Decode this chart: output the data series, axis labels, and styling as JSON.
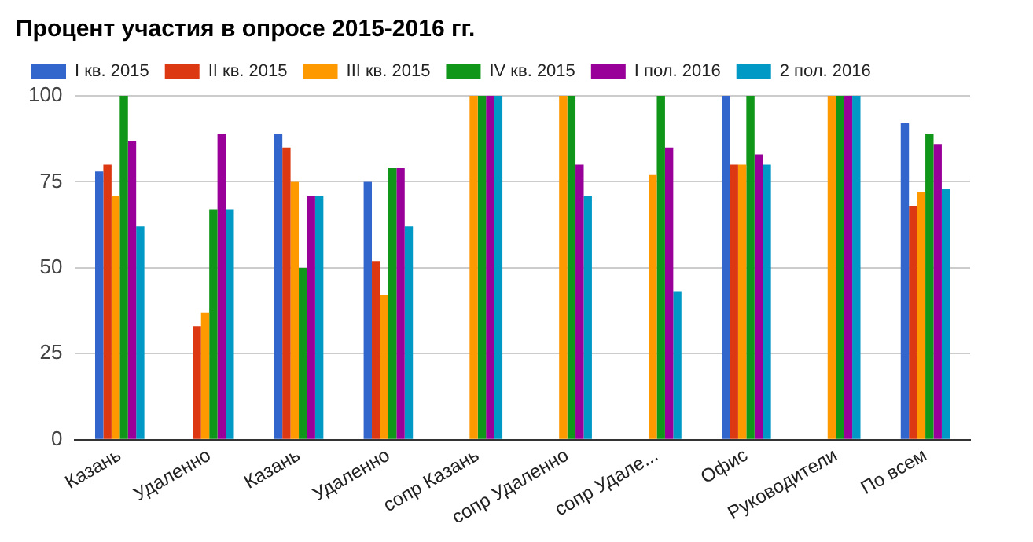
{
  "chart_data": {
    "type": "bar",
    "title": "Процент участия в опросе 2015-2016 гг.",
    "categories": [
      "Казань",
      "Удаленно",
      "Казань",
      "Удаленно",
      "сопр Казань",
      "сопр Удаленно",
      "сопр Удале...",
      "Офис",
      "Руководители",
      "По всем"
    ],
    "series": [
      {
        "name": "I кв. 2015",
        "color": "#3366cc",
        "values": [
          78,
          null,
          89,
          75,
          null,
          null,
          null,
          100,
          null,
          92
        ]
      },
      {
        "name": "II кв. 2015",
        "color": "#dc3912",
        "values": [
          80,
          33,
          85,
          52,
          null,
          null,
          null,
          80,
          null,
          68
        ]
      },
      {
        "name": "III кв. 2015",
        "color": "#ff9900",
        "values": [
          71,
          37,
          75,
          42,
          100,
          100,
          77,
          80,
          100,
          72
        ]
      },
      {
        "name": "IV кв. 2015",
        "color": "#109618",
        "values": [
          100,
          67,
          50,
          79,
          100,
          100,
          100,
          100,
          100,
          89
        ]
      },
      {
        "name": "I пол. 2016",
        "color": "#990099",
        "values": [
          87,
          89,
          71,
          79,
          100,
          80,
          85,
          83,
          100,
          86
        ]
      },
      {
        "name": "2 пол. 2016",
        "color": "#0099c6",
        "values": [
          62,
          67,
          71,
          62,
          100,
          71,
          43,
          80,
          100,
          73
        ]
      }
    ],
    "ylim": [
      0,
      100
    ],
    "yticks": [
      0,
      25,
      50,
      75,
      100
    ],
    "grid": "y",
    "legend": "top"
  }
}
